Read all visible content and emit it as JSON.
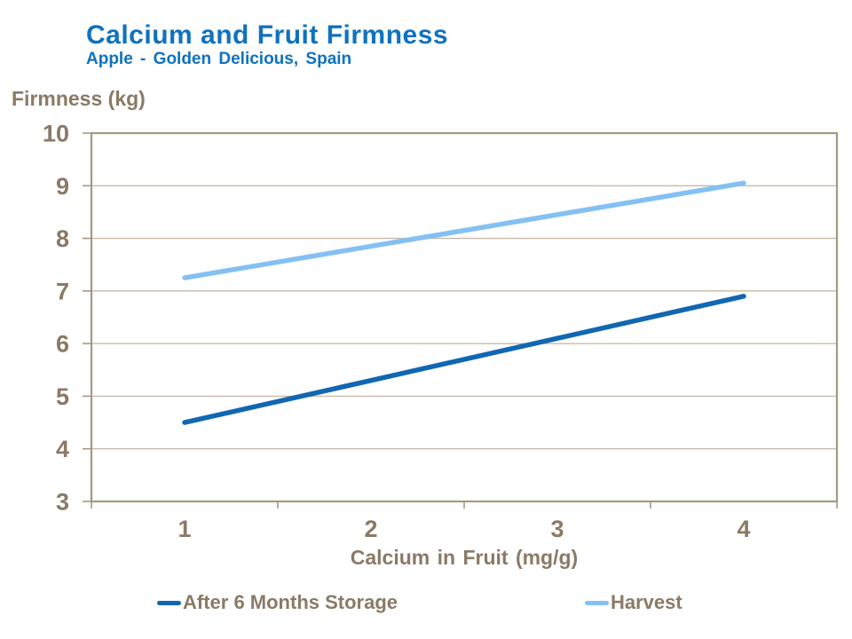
{
  "header": {
    "title": "Calcium and Fruit Firmness",
    "subtitle": "Apple - Golden Delicious, Spain",
    "title_color": "#0f72be"
  },
  "chart_data": {
    "type": "line",
    "title": "Calcium and Fruit Firmness",
    "subtitle": "Apple - Golden Delicious, Spain",
    "xlabel": "Calcium in Fruit (mg/g)",
    "ylabel": "Firmness (kg)",
    "categories": [
      "1",
      "2",
      "3",
      "4"
    ],
    "x": [
      1,
      2,
      3,
      4
    ],
    "series": [
      {
        "name": "After 6 Months Storage",
        "values": [
          4.5,
          5.3,
          6.1,
          6.9
        ],
        "color": "#1167b2"
      },
      {
        "name": "Harvest",
        "values": [
          7.25,
          7.85,
          8.45,
          9.05
        ],
        "color": "#84c0f2"
      }
    ],
    "ylim": [
      3,
      10
    ],
    "yticks": [
      3,
      4,
      5,
      6,
      7,
      8,
      9,
      10
    ],
    "grid": true,
    "legend_position": "bottom",
    "colors": {
      "axis": "#a69981",
      "gridline": "#c7baa8",
      "tick_label": "#8a7a66"
    }
  }
}
